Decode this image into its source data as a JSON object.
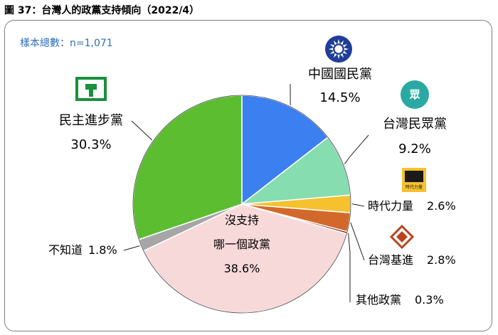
{
  "figure_title": "圖 37：台灣人的政黨支持傾向（2022/4）",
  "sample_note": "樣本總數：n=1,071",
  "logos": {
    "kmt_emblem_icon": "blue-sky-white-sun",
    "tpp_logo_text": "眾",
    "npp_logo_text": "時代力量"
  },
  "chart_data": {
    "type": "pie",
    "title": "台灣人的政黨支持傾向（2022/4）",
    "sample_size": "n=1,071",
    "slices": [
      {
        "name": "中國國民黨",
        "value": 14.5,
        "label": "14.5%",
        "color": "#3b7ff0"
      },
      {
        "name": "台灣民眾黨",
        "value": 9.2,
        "label": "9.2%",
        "color": "#86ddb0"
      },
      {
        "name": "時代力量",
        "value": 2.6,
        "label": "2.6%",
        "color": "#f6c12f"
      },
      {
        "name": "台灣基進",
        "value": 2.8,
        "label": "2.8%",
        "color": "#d2692a"
      },
      {
        "name": "其他政黨",
        "value": 0.3,
        "label": "0.3%",
        "color": "#6b1a16"
      },
      {
        "name": "沒支持哪一個政黨",
        "name_lines": [
          "沒支持",
          "哪一個政黨"
        ],
        "value": 38.6,
        "label": "38.6%",
        "color": "#f8d9d9"
      },
      {
        "name": "不知道",
        "value": 1.8,
        "label": "1.8%",
        "color": "#a6a6a6"
      },
      {
        "name": "民主進步黨",
        "value": 30.3,
        "label": "30.3%",
        "color": "#5cbd31"
      }
    ]
  }
}
